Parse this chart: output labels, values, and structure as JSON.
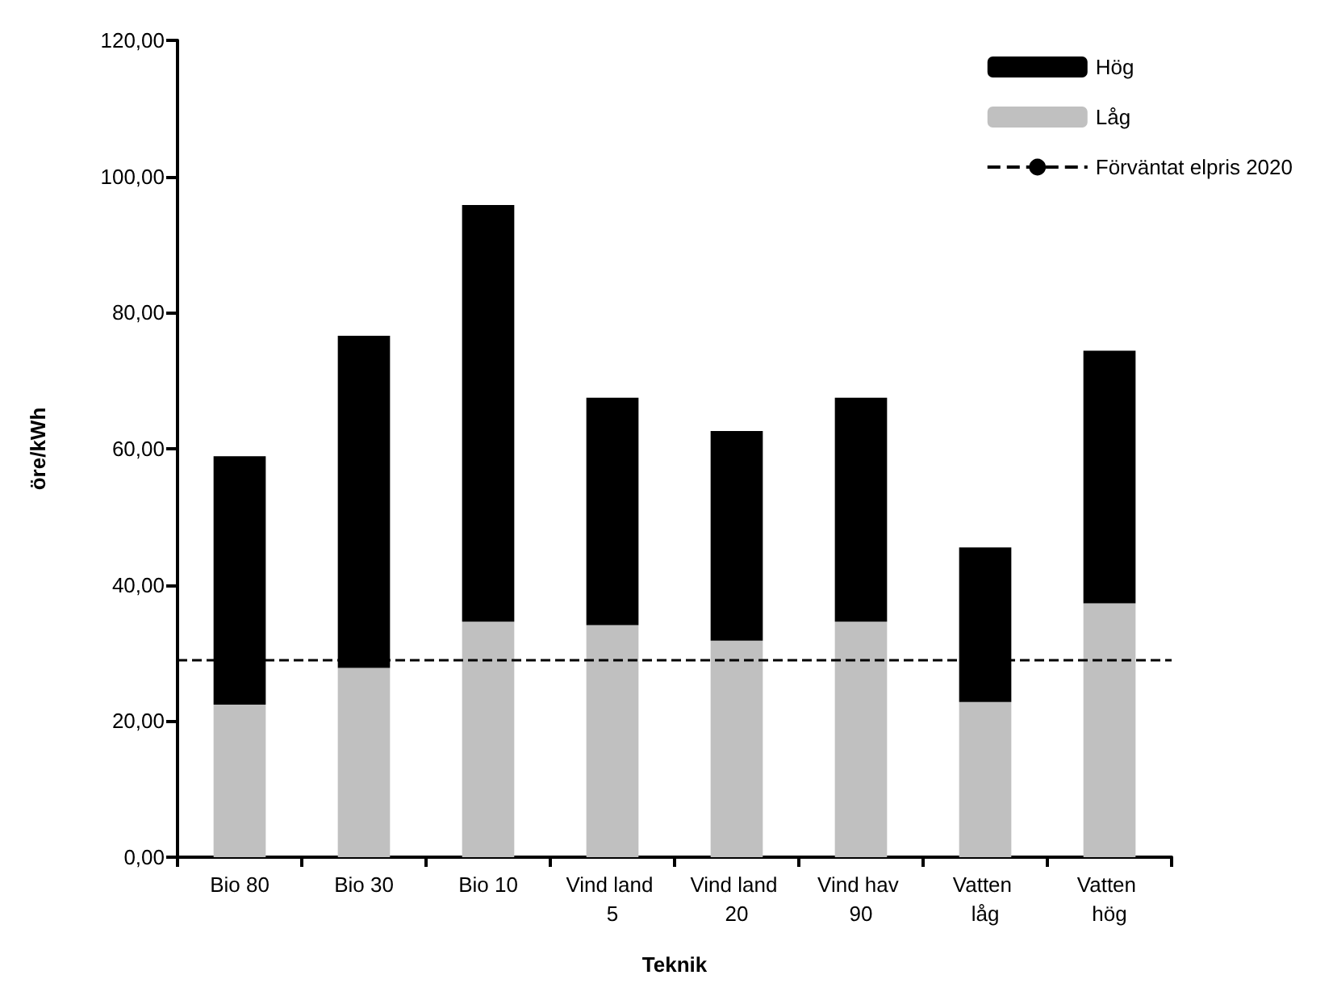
{
  "chart_data": {
    "type": "bar",
    "stacked": true,
    "xlabel": "Teknik",
    "ylabel": "öre/kWh",
    "categories": [
      "Bio 80",
      "Bio 30",
      "Bio 10",
      "Vind land 5",
      "Vind land 20",
      "Vind hav 90",
      "Vatten låg",
      "Vatten hög"
    ],
    "series": [
      {
        "name": "Låg",
        "color": "#c0c0c0",
        "values": [
          22.4,
          27.8,
          34.6,
          34.1,
          31.8,
          34.6,
          22.8,
          37.3
        ]
      },
      {
        "name": "Hög",
        "color": "#000000",
        "values": [
          36.5,
          48.8,
          61.2,
          33.4,
          30.8,
          32.9,
          22.7,
          37.1
        ]
      }
    ],
    "ylim": [
      0,
      120
    ],
    "yticks": [
      {
        "value": 0,
        "label": "0,00"
      },
      {
        "value": 20,
        "label": "20,00"
      },
      {
        "value": 40,
        "label": "40,00"
      },
      {
        "value": 60,
        "label": "60,00"
      },
      {
        "value": 80,
        "label": "80,00"
      },
      {
        "value": 100,
        "label": "100,00"
      },
      {
        "value": 120,
        "label": "120,00"
      }
    ],
    "ref_lines": [
      {
        "axis": "y",
        "value": 28.9,
        "label": "Förväntat elpris 2020",
        "color": "#000000",
        "line_style": "dashed"
      }
    ],
    "grid": false,
    "legend": "top right"
  }
}
